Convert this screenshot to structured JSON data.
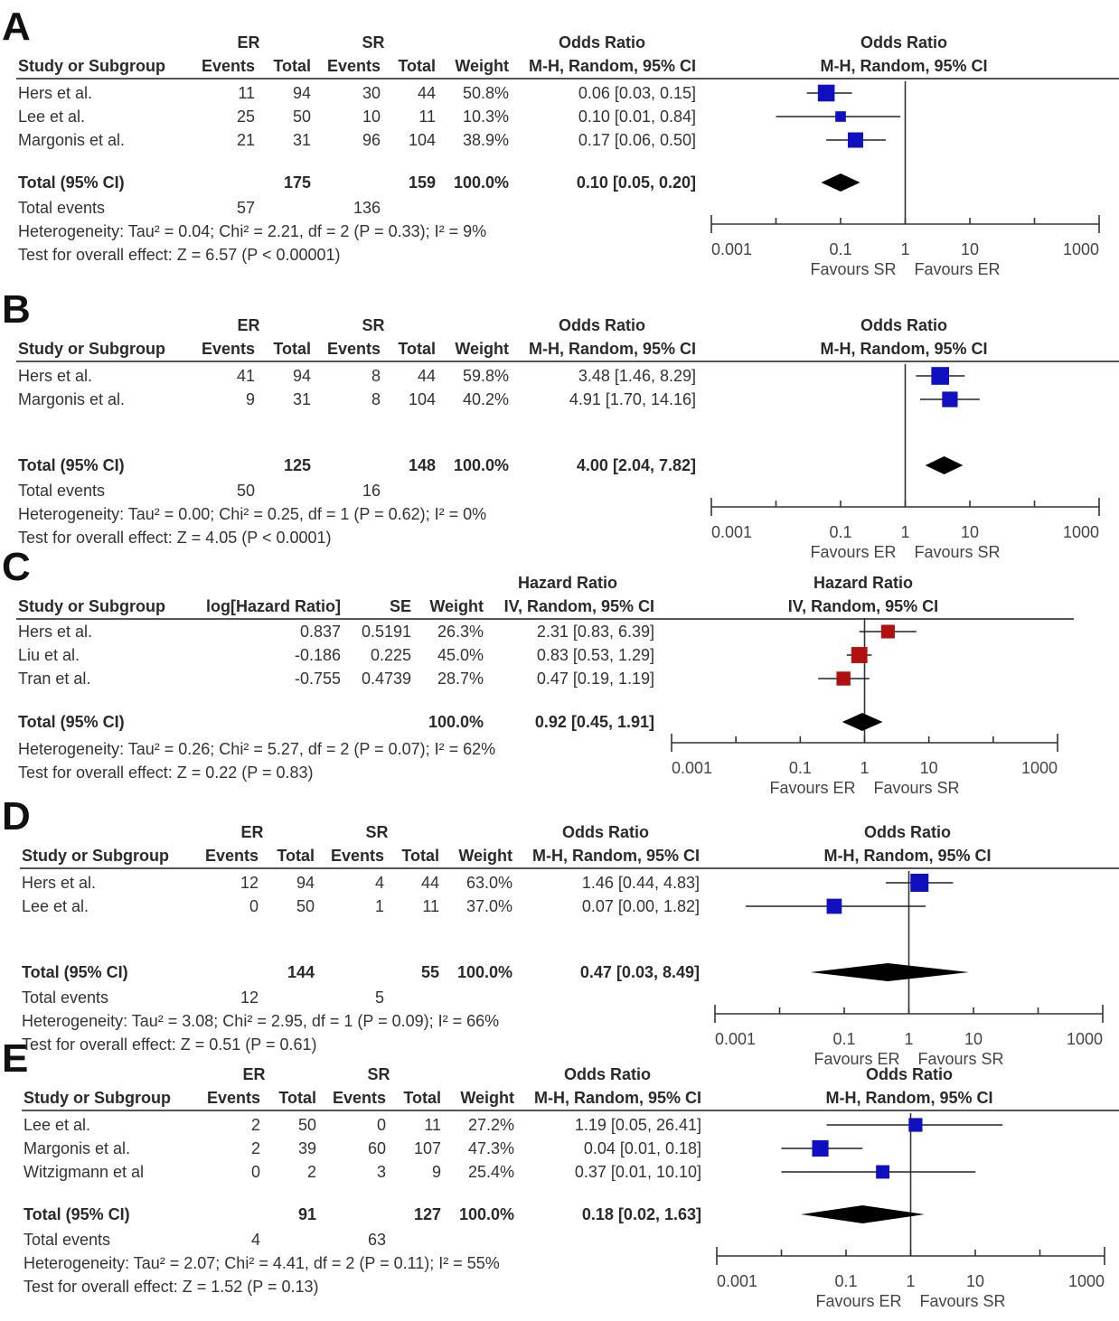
{
  "chart_data": [
    {
      "type": "forest",
      "panel_label": "A",
      "effect_measure": "Odds Ratio",
      "method": "M-H, Random, 95% CI",
      "group1": "ER",
      "group2": "SR",
      "columns": [
        "Study or Subgroup",
        "Events",
        "Total",
        "Events",
        "Total",
        "Weight",
        "M-H, Random, 95% CI"
      ],
      "studies": [
        {
          "name": "Hers et al.",
          "e1": "11",
          "n1": "94",
          "e2": "30",
          "n2": "44",
          "weight": "50.8%",
          "ci_text": "0.06 [0.03, 0.15]",
          "est": 0.06,
          "lo": 0.03,
          "hi": 0.15,
          "w": 50.8
        },
        {
          "name": "Lee et al.",
          "e1": "25",
          "n1": "50",
          "e2": "10",
          "n2": "11",
          "weight": "10.3%",
          "ci_text": "0.10 [0.01, 0.84]",
          "est": 0.1,
          "lo": 0.01,
          "hi": 0.84,
          "w": 10.3
        },
        {
          "name": "Margonis et al.",
          "e1": "21",
          "n1": "31",
          "e2": "96",
          "n2": "104",
          "weight": "38.9%",
          "ci_text": "0.17 [0.06, 0.50]",
          "est": 0.17,
          "lo": 0.06,
          "hi": 0.5,
          "w": 38.9
        }
      ],
      "total": {
        "label": "Total (95% CI)",
        "n1": "175",
        "n2": "159",
        "weight": "100.0%",
        "ci_text": "0.10 [0.05, 0.20]",
        "est": 0.1,
        "lo": 0.05,
        "hi": 0.2
      },
      "total_events": {
        "label": "Total events",
        "e1": "57",
        "e2": "136"
      },
      "heterogeneity": "Heterogeneity: Tau² = 0.04; Chi² = 2.21, df = 2 (P = 0.33); I² = 9%",
      "overall_effect": "Test for overall effect: Z = 6.57 (P < 0.00001)",
      "axis_ticks": [
        "0.001",
        "0.1",
        "1",
        "10",
        "1000"
      ],
      "xlim": [
        0.001,
        1000
      ],
      "x_scale": "log",
      "favours_left": "Favours SR",
      "favours_right": "Favours ER",
      "marker_color": "#1010c0"
    },
    {
      "type": "forest",
      "panel_label": "B",
      "effect_measure": "Odds Ratio",
      "method": "M-H, Random, 95% CI",
      "group1": "ER",
      "group2": "SR",
      "columns": [
        "Study or Subgroup",
        "Events",
        "Total",
        "Events",
        "Total",
        "Weight",
        "M-H, Random, 95% CI"
      ],
      "studies": [
        {
          "name": "Hers et al.",
          "e1": "41",
          "n1": "94",
          "e2": "8",
          "n2": "44",
          "weight": "59.8%",
          "ci_text": "3.48 [1.46, 8.29]",
          "est": 3.48,
          "lo": 1.46,
          "hi": 8.29,
          "w": 59.8
        },
        {
          "name": "Margonis et al.",
          "e1": "9",
          "n1": "31",
          "e2": "8",
          "n2": "104",
          "weight": "40.2%",
          "ci_text": "4.91 [1.70, 14.16]",
          "est": 4.91,
          "lo": 1.7,
          "hi": 14.16,
          "w": 40.2
        }
      ],
      "total": {
        "label": "Total (95% CI)",
        "n1": "125",
        "n2": "148",
        "weight": "100.0%",
        "ci_text": "4.00 [2.04, 7.82]",
        "est": 4.0,
        "lo": 2.04,
        "hi": 7.82
      },
      "total_events": {
        "label": "Total events",
        "e1": "50",
        "e2": "16"
      },
      "heterogeneity": "Heterogeneity: Tau² = 0.00; Chi² = 0.25, df = 1 (P = 0.62); I² = 0%",
      "overall_effect": "Test for overall effect: Z = 4.05 (P < 0.0001)",
      "axis_ticks": [
        "0.001",
        "0.1",
        "1",
        "10",
        "1000"
      ],
      "xlim": [
        0.001,
        1000
      ],
      "x_scale": "log",
      "favours_left": "Favours ER",
      "favours_right": "Favours SR",
      "marker_color": "#1010c0"
    },
    {
      "type": "forest",
      "panel_label": "C",
      "effect_measure": "Hazard Ratio",
      "method": "IV, Random, 95% CI",
      "columns": [
        "Study or Subgroup",
        "log[Hazard Ratio]",
        "SE",
        "Weight",
        "IV, Random, 95% CI"
      ],
      "studies": [
        {
          "name": "Hers et al.",
          "loghr": "0.837",
          "se": "0.5191",
          "weight": "26.3%",
          "ci_text": "2.31 [0.83, 6.39]",
          "est": 2.31,
          "lo": 0.83,
          "hi": 6.39,
          "w": 26.3
        },
        {
          "name": "Liu et al.",
          "loghr": "-0.186",
          "se": "0.225",
          "weight": "45.0%",
          "ci_text": "0.83 [0.53, 1.29]",
          "est": 0.83,
          "lo": 0.53,
          "hi": 1.29,
          "w": 45.0
        },
        {
          "name": "Tran et al.",
          "loghr": "-0.755",
          "se": "0.4739",
          "weight": "28.7%",
          "ci_text": "0.47 [0.19, 1.19]",
          "est": 0.47,
          "lo": 0.19,
          "hi": 1.19,
          "w": 28.7
        }
      ],
      "total": {
        "label": "Total (95% CI)",
        "weight": "100.0%",
        "ci_text": "0.92 [0.45, 1.91]",
        "est": 0.92,
        "lo": 0.45,
        "hi": 1.91
      },
      "heterogeneity": "Heterogeneity: Tau² = 0.26; Chi² = 5.27, df = 2 (P = 0.07); I² = 62%",
      "overall_effect": "Test for overall effect: Z = 0.22 (P = 0.83)",
      "axis_ticks": [
        "0.001",
        "0.1",
        "1",
        "10",
        "1000"
      ],
      "xlim": [
        0.001,
        1000
      ],
      "x_scale": "log",
      "favours_left": "Favours ER",
      "favours_right": "Favours SR",
      "marker_color": "#b01010"
    },
    {
      "type": "forest",
      "panel_label": "D",
      "effect_measure": "Odds Ratio",
      "method": "M-H, Random, 95% CI",
      "group1": "ER",
      "group2": "SR",
      "columns": [
        "Study or Subgroup",
        "Events",
        "Total",
        "Events",
        "Total",
        "Weight",
        "M-H, Random, 95% CI"
      ],
      "studies": [
        {
          "name": "Hers et al.",
          "e1": "12",
          "n1": "94",
          "e2": "4",
          "n2": "44",
          "weight": "63.0%",
          "ci_text": "1.46 [0.44, 4.83]",
          "est": 1.46,
          "lo": 0.44,
          "hi": 4.83,
          "w": 63.0
        },
        {
          "name": "Lee et al.",
          "e1": "0",
          "n1": "50",
          "e2": "1",
          "n2": "11",
          "weight": "37.0%",
          "ci_text": "0.07 [0.00, 1.82]",
          "est": 0.07,
          "lo": 0.003,
          "hi": 1.82,
          "w": 37.0
        }
      ],
      "total": {
        "label": "Total (95% CI)",
        "n1": "144",
        "n2": "55",
        "weight": "100.0%",
        "ci_text": "0.47 [0.03, 8.49]",
        "est": 0.47,
        "lo": 0.03,
        "hi": 8.49
      },
      "total_events": {
        "label": "Total events",
        "e1": "12",
        "e2": "5"
      },
      "heterogeneity": "Heterogeneity: Tau² = 3.08; Chi² = 2.95, df = 1 (P = 0.09); I² = 66%",
      "overall_effect": "Test for overall effect: Z = 0.51 (P = 0.61)",
      "axis_ticks": [
        "0.001",
        "0.1",
        "1",
        "10",
        "1000"
      ],
      "xlim": [
        0.001,
        1000
      ],
      "x_scale": "log",
      "favours_left": "Favours ER",
      "favours_right": "Favours SR",
      "marker_color": "#1010c0"
    },
    {
      "type": "forest",
      "panel_label": "E",
      "effect_measure": "Odds Ratio",
      "method": "M-H, Random, 95% CI",
      "group1": "ER",
      "group2": "SR",
      "columns": [
        "Study or Subgroup",
        "Events",
        "Total",
        "Events",
        "Total",
        "Weight",
        "M-H, Random, 95% CI"
      ],
      "studies": [
        {
          "name": "Lee et al.",
          "e1": "2",
          "n1": "50",
          "e2": "0",
          "n2": "11",
          "weight": "27.2%",
          "ci_text": "1.19 [0.05, 26.41]",
          "est": 1.19,
          "lo": 0.05,
          "hi": 26.41,
          "w": 27.2
        },
        {
          "name": "Margonis et al.",
          "e1": "2",
          "n1": "39",
          "e2": "60",
          "n2": "107",
          "weight": "47.3%",
          "ci_text": "0.04 [0.01, 0.18]",
          "est": 0.04,
          "lo": 0.01,
          "hi": 0.18,
          "w": 47.3
        },
        {
          "name": "Witzigmann et al",
          "e1": "0",
          "n1": "2",
          "e2": "3",
          "n2": "9",
          "weight": "25.4%",
          "ci_text": "0.37 [0.01, 10.10]",
          "est": 0.37,
          "lo": 0.01,
          "hi": 10.1,
          "w": 25.4
        }
      ],
      "total": {
        "label": "Total (95% CI)",
        "n1": "91",
        "n2": "127",
        "weight": "100.0%",
        "ci_text": "0.18 [0.02, 1.63]",
        "est": 0.18,
        "lo": 0.02,
        "hi": 1.63
      },
      "total_events": {
        "label": "Total events",
        "e1": "4",
        "e2": "63"
      },
      "heterogeneity": "Heterogeneity: Tau² = 2.07; Chi² = 4.41, df = 2 (P = 0.11); I² = 55%",
      "overall_effect": "Test for overall effect: Z = 1.52 (P = 0.13)",
      "axis_ticks": [
        "0.001",
        "0.1",
        "1",
        "10",
        "1000"
      ],
      "xlim": [
        0.001,
        1000
      ],
      "x_scale": "log",
      "favours_left": "Favours ER",
      "favours_right": "Favours SR",
      "marker_color": "#1010c0"
    }
  ]
}
